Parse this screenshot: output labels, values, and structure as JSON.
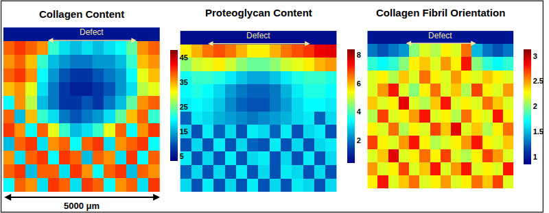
{
  "chart_data": [
    {
      "type": "heatmap",
      "title": "Collagen Content",
      "annotations": [
        "Defect"
      ],
      "scale_bar": "5000 μm",
      "color": "Jet",
      "tick_labels": false,
      "zlim": [
        3,
        48
      ],
      "zticks": [
        5,
        15,
        25,
        35,
        45
      ],
      "cells": [
        [
          5,
          5,
          5,
          5,
          5,
          5,
          5,
          5,
          5,
          5,
          5,
          5,
          5,
          5
        ],
        [
          38,
          40,
          38,
          36,
          22,
          18,
          16,
          18,
          16,
          18,
          20,
          24,
          36,
          38
        ],
        [
          36,
          38,
          34,
          22,
          16,
          14,
          12,
          12,
          14,
          14,
          16,
          22,
          34,
          36
        ],
        [
          38,
          40,
          36,
          20,
          14,
          10,
          8,
          8,
          10,
          12,
          14,
          20,
          30,
          34
        ],
        [
          34,
          36,
          30,
          18,
          12,
          8,
          6,
          6,
          8,
          10,
          14,
          18,
          28,
          30
        ],
        [
          20,
          36,
          28,
          16,
          12,
          8,
          8,
          10,
          8,
          12,
          16,
          24,
          36,
          38
        ],
        [
          38,
          16,
          34,
          22,
          18,
          12,
          10,
          12,
          14,
          18,
          24,
          34,
          38,
          22
        ],
        [
          40,
          36,
          20,
          38,
          30,
          22,
          16,
          18,
          22,
          30,
          38,
          20,
          36,
          40
        ],
        [
          16,
          38,
          40,
          18,
          36,
          38,
          20,
          38,
          40,
          18,
          36,
          38,
          40,
          20
        ],
        [
          36,
          18,
          38,
          40,
          20,
          40,
          38,
          16,
          38,
          36,
          18,
          40,
          20,
          38
        ],
        [
          38,
          40,
          16,
          38,
          38,
          18,
          40,
          36,
          20,
          38,
          40,
          16,
          38,
          36
        ],
        [
          20,
          38,
          36,
          18,
          40,
          38,
          18,
          40,
          38,
          20,
          36,
          38,
          18,
          40
        ]
      ]
    },
    {
      "type": "heatmap",
      "title": "Proteoglycan Content",
      "annotations": [
        "Defect"
      ],
      "color": "Jet",
      "tick_labels": false,
      "zlim": [
        0.4,
        8.4
      ],
      "zticks": [
        2,
        4,
        6,
        8
      ],
      "cells": [
        [
          0.6,
          0.6,
          0.6,
          0.6,
          0.6,
          0.6,
          0.6,
          0.6,
          0.6,
          0.6,
          0.6,
          0.6,
          0.6,
          0.6
        ],
        [
          5.5,
          6.0,
          6.5,
          6.8,
          6.5,
          6.0,
          5.5,
          5.5,
          6.0,
          6.5,
          6.8,
          7.0,
          7.5,
          7.6
        ],
        [
          4.5,
          5.0,
          5.2,
          5.5,
          5.0,
          4.5,
          4.2,
          4.2,
          4.5,
          5.0,
          5.2,
          5.5,
          6.0,
          6.2
        ],
        [
          3.5,
          3.8,
          3.8,
          3.6,
          3.2,
          2.8,
          2.5,
          2.5,
          2.8,
          3.2,
          3.6,
          3.8,
          3.8,
          3.6
        ],
        [
          3.4,
          3.6,
          3.4,
          3.0,
          2.4,
          2.0,
          1.8,
          1.8,
          2.0,
          2.6,
          3.2,
          3.6,
          3.6,
          3.4
        ],
        [
          3.2,
          3.4,
          3.2,
          2.8,
          2.2,
          1.8,
          1.6,
          1.6,
          2.0,
          2.4,
          3.0,
          3.4,
          3.4,
          3.2
        ],
        [
          1.8,
          3.2,
          3.0,
          2.6,
          2.4,
          2.2,
          2.0,
          2.2,
          2.4,
          2.6,
          3.0,
          3.2,
          1.8,
          3.0
        ],
        [
          3.0,
          1.6,
          3.2,
          1.8,
          3.0,
          1.6,
          3.2,
          3.0,
          1.8,
          3.2,
          1.6,
          3.0,
          3.2,
          1.6
        ],
        [
          1.6,
          3.0,
          1.6,
          3.2,
          1.6,
          3.0,
          1.8,
          1.6,
          3.2,
          1.6,
          3.0,
          1.6,
          3.0,
          3.2
        ],
        [
          3.2,
          1.6,
          3.0,
          1.6,
          3.2,
          1.6,
          3.0,
          3.2,
          1.6,
          3.0,
          1.6,
          3.2,
          1.6,
          3.0
        ],
        [
          1.8,
          3.0,
          1.6,
          3.0,
          1.6,
          3.2,
          1.6,
          3.0,
          1.6,
          3.2,
          3.0,
          1.6,
          3.0,
          1.6
        ],
        [
          3.0,
          1.6,
          3.2,
          1.6,
          3.0,
          1.6,
          3.2,
          1.6,
          3.0,
          1.6,
          3.2,
          3.0,
          1.6,
          3.0
        ]
      ]
    },
    {
      "type": "heatmap",
      "title": "Collagen Fibril Orientation",
      "annotations": [
        "Defect"
      ],
      "color": "Jet",
      "tick_labels": false,
      "zlim": [
        0.85,
        3.13
      ],
      "zticks": [
        1,
        1.5,
        2,
        2.5,
        3
      ],
      "cells": [
        [
          0.95,
          0.95,
          0.95,
          0.95,
          0.95,
          0.95,
          0.95,
          0.95,
          0.95,
          0.95,
          0.95,
          0.95,
          0.95,
          0.95
        ],
        [
          1.3,
          1.2,
          1.3,
          1.4,
          2.0,
          2.2,
          2.1,
          2.3,
          2.2,
          2.6,
          1.5,
          1.3,
          1.2,
          1.3
        ],
        [
          1.8,
          1.7,
          1.8,
          2.0,
          2.3,
          2.4,
          2.2,
          2.5,
          2.3,
          2.8,
          2.0,
          1.8,
          1.7,
          1.8
        ],
        [
          2.2,
          2.3,
          2.1,
          2.4,
          2.2,
          2.6,
          2.3,
          2.2,
          2.5,
          2.3,
          2.2,
          2.4,
          2.3,
          2.2
        ],
        [
          2.2,
          2.5,
          2.8,
          2.2,
          2.0,
          2.3,
          2.6,
          2.2,
          2.4,
          2.1,
          2.7,
          2.3,
          2.2,
          2.5
        ],
        [
          2.4,
          2.2,
          2.3,
          2.9,
          2.2,
          2.1,
          2.4,
          2.8,
          2.2,
          2.3,
          2.2,
          2.6,
          2.4,
          2.2
        ],
        [
          2.1,
          2.7,
          2.2,
          2.3,
          2.5,
          2.8,
          2.2,
          2.3,
          2.1,
          2.6,
          2.3,
          2.2,
          2.8,
          2.3
        ],
        [
          2.3,
          2.2,
          2.6,
          2.1,
          2.3,
          2.2,
          2.7,
          2.4,
          2.9,
          2.2,
          2.4,
          2.1,
          2.3,
          2.6
        ],
        [
          2.7,
          2.3,
          2.2,
          2.5,
          2.8,
          2.3,
          2.1,
          2.2,
          2.3,
          2.5,
          2.8,
          2.3,
          2.2,
          2.4
        ],
        [
          2.2,
          2.4,
          2.9,
          2.2,
          2.3,
          2.6,
          2.3,
          2.7,
          2.2,
          2.1,
          2.3,
          2.7,
          2.5,
          2.2
        ],
        [
          2.5,
          2.2,
          2.3,
          2.7,
          2.2,
          2.4,
          2.8,
          2.2,
          2.5,
          2.8,
          2.2,
          2.3,
          2.2,
          2.8
        ],
        [
          2.3,
          2.8,
          2.2,
          2.4,
          2.6,
          2.2,
          2.3,
          2.5,
          2.2,
          2.3,
          2.6,
          2.4,
          2.7,
          2.2
        ]
      ]
    }
  ]
}
